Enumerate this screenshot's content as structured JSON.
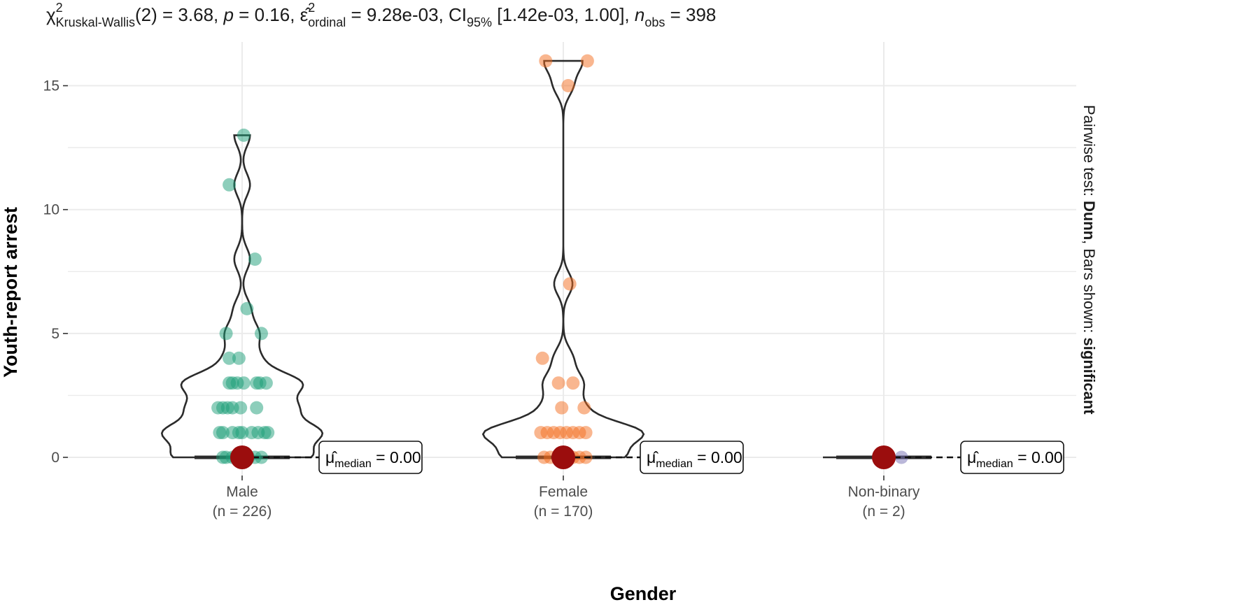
{
  "chart_data": {
    "type": "violin",
    "subtitle": {
      "chi": "χ",
      "chi_sup": "2",
      "chi_sub": "Kruskal-Wallis",
      "df_part": "(2) = 3.68, ",
      "p_label": "p",
      "p_part": " = 0.16, ",
      "eps": "ε̂",
      "eps_sup": "2",
      "eps_sub": "ordinal",
      "eps_part": " = 9.28e-03, CI",
      "ci_sub": "95%",
      "ci_part": " [1.42e-03, 1.00], ",
      "n_label": "n",
      "n_sub": "obs",
      "n_part": " = 398"
    },
    "xlabel": "Gender",
    "ylabel": "Youth-report arrest",
    "caption": {
      "prefix": "Pairwise test: ",
      "test": "Dunn",
      "middle": ", Bars shown: ",
      "bars": "significant"
    },
    "ylim": [
      -0.5,
      16.5
    ],
    "yticks": [
      0,
      5,
      10,
      15
    ],
    "grid": true,
    "categories": [
      {
        "name": "Male",
        "n_label": "(n = 226)",
        "color": "#1b9e77",
        "median": 0,
        "median_label": {
          "mu": "μ̂",
          "sub": "median",
          "value": " = 0.00"
        },
        "max": 13,
        "points": [
          {
            "x": -0.05,
            "y": 0
          },
          {
            "x": -0.02,
            "y": 0
          },
          {
            "x": 0.01,
            "y": 0
          },
          {
            "x": 0.04,
            "y": 0
          },
          {
            "x": -0.03,
            "y": 0
          },
          {
            "x": 0.02,
            "y": 0
          },
          {
            "x": 0.06,
            "y": 0
          },
          {
            "x": -0.06,
            "y": 0
          },
          {
            "x": -0.07,
            "y": 1
          },
          {
            "x": -0.06,
            "y": 1
          },
          {
            "x": -0.03,
            "y": 1
          },
          {
            "x": -0.01,
            "y": 1
          },
          {
            "x": 0.0,
            "y": 1
          },
          {
            "x": 0.03,
            "y": 1
          },
          {
            "x": 0.05,
            "y": 1
          },
          {
            "x": 0.07,
            "y": 1
          },
          {
            "x": 0.08,
            "y": 1
          },
          {
            "x": -0.075,
            "y": 2
          },
          {
            "x": -0.06,
            "y": 2
          },
          {
            "x": -0.045,
            "y": 2
          },
          {
            "x": -0.03,
            "y": 2
          },
          {
            "x": -0.005,
            "y": 2
          },
          {
            "x": 0.045,
            "y": 2
          },
          {
            "x": -0.04,
            "y": 3
          },
          {
            "x": -0.03,
            "y": 3
          },
          {
            "x": -0.015,
            "y": 3
          },
          {
            "x": 0.005,
            "y": 3
          },
          {
            "x": 0.045,
            "y": 3
          },
          {
            "x": 0.055,
            "y": 3
          },
          {
            "x": 0.075,
            "y": 3
          },
          {
            "x": -0.04,
            "y": 4
          },
          {
            "x": -0.01,
            "y": 4
          },
          {
            "x": -0.05,
            "y": 5
          },
          {
            "x": 0.06,
            "y": 5
          },
          {
            "x": 0.015,
            "y": 6
          },
          {
            "x": 0.04,
            "y": 8
          },
          {
            "x": -0.04,
            "y": 11
          },
          {
            "x": 0.005,
            "y": 13
          }
        ]
      },
      {
        "name": "Female",
        "n_label": "(n = 170)",
        "color": "#f46d1f",
        "median": 0,
        "median_label": {
          "mu": "μ̂",
          "sub": "median",
          "value": " = 0.00"
        },
        "max": 16,
        "points": [
          {
            "x": -0.06,
            "y": 0
          },
          {
            "x": -0.04,
            "y": 0
          },
          {
            "x": -0.01,
            "y": 0
          },
          {
            "x": 0.03,
            "y": 0
          },
          {
            "x": 0.05,
            "y": 0
          },
          {
            "x": 0.07,
            "y": 0
          },
          {
            "x": -0.07,
            "y": 1
          },
          {
            "x": -0.05,
            "y": 1
          },
          {
            "x": -0.03,
            "y": 1
          },
          {
            "x": -0.01,
            "y": 1
          },
          {
            "x": 0.01,
            "y": 1
          },
          {
            "x": 0.03,
            "y": 1
          },
          {
            "x": 0.05,
            "y": 1
          },
          {
            "x": 0.07,
            "y": 1
          },
          {
            "x": -0.005,
            "y": 2
          },
          {
            "x": 0.065,
            "y": 2
          },
          {
            "x": -0.015,
            "y": 3
          },
          {
            "x": 0.03,
            "y": 3
          },
          {
            "x": -0.065,
            "y": 4
          },
          {
            "x": 0.02,
            "y": 7
          },
          {
            "x": 0.015,
            "y": 15
          },
          {
            "x": -0.055,
            "y": 16
          },
          {
            "x": 0.075,
            "y": 16
          }
        ]
      },
      {
        "name": "Non-binary",
        "n_label": "(n = 2)",
        "color": "#7570b3",
        "median": 0,
        "median_label": {
          "mu": "μ̂",
          "sub": "median",
          "value": " = 0.00"
        },
        "max": 0,
        "points": [
          {
            "x": 0.055,
            "y": 0
          }
        ]
      }
    ]
  }
}
